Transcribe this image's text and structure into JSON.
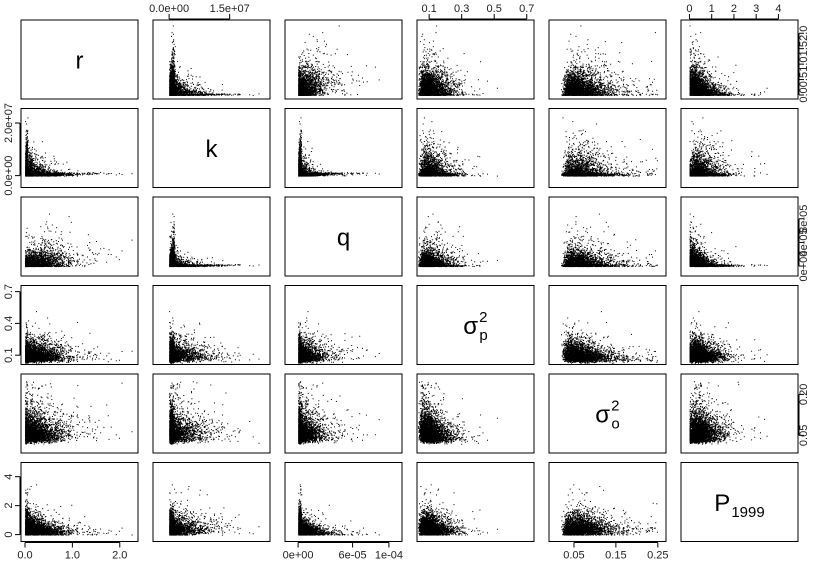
{
  "chart_data": {
    "type": "scatter",
    "layout": "scatterplot-matrix",
    "title": "",
    "n_points_per_panel_approx": 3500,
    "variables": [
      {
        "key": "r",
        "label": "r",
        "sub": "",
        "sup": "",
        "range": [
          0,
          2.3
        ],
        "ticks": [
          0.0,
          1.0,
          2.0
        ],
        "tick_labels": [
          "0.0",
          "1.0",
          "2.0"
        ],
        "y_tick_labels": [
          "0.0",
          "0.5",
          "1.0",
          "1.5",
          "2.0"
        ],
        "y_ticks": [
          0.0,
          0.5,
          1.0,
          1.5,
          2.0
        ]
      },
      {
        "key": "k",
        "label": "k",
        "sub": "",
        "sup": "",
        "range": [
          -3000000.0,
          24000000.0
        ],
        "ticks": [
          0.0,
          15000000.0
        ],
        "tick_labels": [
          "0.0e+00",
          "1.5e+07"
        ],
        "y_tick_labels": [
          "0.0e+00",
          "2.0e+07"
        ],
        "y_ticks": [
          0.0,
          20000000.0
        ]
      },
      {
        "key": "q",
        "label": "q",
        "sub": "",
        "sup": "",
        "range": [
          -1e-05,
          0.00011
        ],
        "ticks": [
          0.0,
          6e-05,
          0.0001
        ],
        "tick_labels": [
          "0e+00",
          "6e-05",
          "1e-04"
        ],
        "y_tick_labels": [
          "0e+00",
          "4e-05",
          "8e-05"
        ],
        "y_ticks": [
          0.0,
          4e-05,
          8e-05
        ]
      },
      {
        "key": "sigma_p2",
        "label": "σ",
        "sub": "p",
        "sup": "2",
        "range": [
          0.05,
          0.72
        ],
        "ticks": [
          0.1,
          0.3,
          0.5,
          0.7
        ],
        "tick_labels": [
          "0.1",
          "0.3",
          "0.5",
          "0.7"
        ],
        "y_tick_labels": [
          "0.1",
          "0.4",
          "0.7"
        ],
        "y_ticks": [
          0.1,
          0.4,
          0.7
        ]
      },
      {
        "key": "sigma_o2",
        "label": "σ",
        "sub": "o",
        "sup": "2",
        "range": [
          0.0,
          0.26
        ],
        "ticks": [
          0.05,
          0.15,
          0.25
        ],
        "tick_labels": [
          "0.05",
          "0.15",
          "0.25"
        ],
        "y_tick_labels": [
          "0.05",
          "0.20"
        ],
        "y_ticks": [
          0.05,
          0.2
        ]
      },
      {
        "key": "P1999",
        "label": "P",
        "sub": "1999",
        "sup": "",
        "range": [
          -0.2,
          4.7
        ],
        "ticks": [
          0,
          1,
          2,
          3,
          4
        ],
        "tick_labels": [
          "0",
          "1",
          "2",
          "3",
          "4"
        ],
        "y_tick_labels": [
          "0",
          "2",
          "4"
        ],
        "y_ticks": [
          0,
          2,
          4
        ]
      }
    ],
    "distributions": {
      "r": {
        "center": 0.3,
        "spread": 0.25,
        "skew": "right-long-tail",
        "max": 2.3
      },
      "k": {
        "center": 1500000.0,
        "spread": 3000000.0,
        "skew": "right-long-tail",
        "max": 23000000.0
      },
      "q": {
        "center": 8e-06,
        "spread": 1e-05,
        "skew": "right-long-tail",
        "max": 0.000105
      },
      "sigma_p2": {
        "center": 0.13,
        "spread": 0.05,
        "skew": "right-long-tail",
        "max": 0.7
      },
      "sigma_o2": {
        "center": 0.08,
        "spread": 0.03,
        "skew": "right-long-tail",
        "max": 0.25
      },
      "P1999": {
        "center": 0.6,
        "spread": 0.35,
        "skew": "right-long-tail",
        "max": 4.6
      }
    },
    "correlations": {
      "r-k": -0.55,
      "r-q": 0.45,
      "k-q": -0.6,
      "r-P1999": -0.35,
      "q-P1999": -0.45,
      "k-P1999": 0.15,
      "r-sigma_p2": 0.05,
      "r-sigma_o2": 0.05,
      "k-sigma_p2": 0.05,
      "k-sigma_o2": 0.05,
      "q-sigma_p2": 0.05,
      "q-sigma_o2": 0.05,
      "sigma_p2-sigma_o2": -0.2,
      "sigma_p2-P1999": -0.05,
      "sigma_o2-P1999": 0.05
    },
    "axes": {
      "top_axis_columns": [
        1,
        3,
        5
      ],
      "bottom_axis_columns": [
        0,
        2,
        4
      ],
      "left_axis_rows": [
        1,
        3,
        5
      ],
      "right_axis_rows": [
        0,
        2,
        4
      ]
    },
    "grid": false,
    "legend": "none",
    "point_color": "#000000"
  }
}
